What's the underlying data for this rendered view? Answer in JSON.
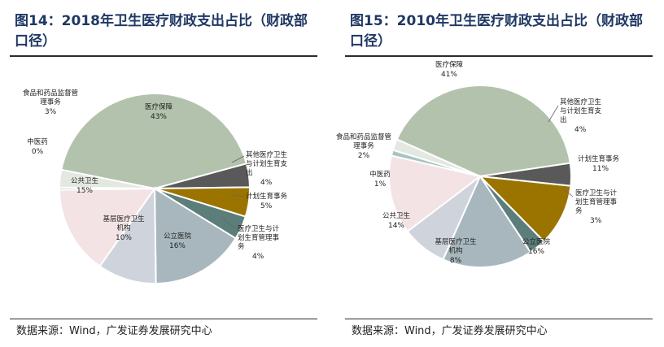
{
  "panels": [
    {
      "title": "图14：2018年卫生医疗财政支出占比（财政部口径）",
      "source": "数据来源：Wind，广发证券发展研究中心"
    },
    {
      "title": "图15：2010年卫生医疗财政支出占比（财政部口径）",
      "source": "数据来源：Wind，广发证券发展研究中心"
    }
  ],
  "chart_data": [
    {
      "type": "pie",
      "title": "图14：2018年卫生医疗财政支出占比（财政部口径）",
      "categories": [
        "医疗保障",
        "其他医疗卫生与计划生育支出",
        "计划生育事务",
        "医疗卫生与计划生育管理事务",
        "公立医院",
        "基层医疗卫生机构",
        "公共卫生",
        "中医药",
        "食品和药品监督管理事务"
      ],
      "values": [
        43,
        4,
        5,
        4,
        16,
        10,
        15,
        0,
        3
      ],
      "labels": [
        "43%",
        "4%",
        "5%",
        "4%",
        "16%",
        "10%",
        "15%",
        "0%",
        "3%"
      ],
      "colors": [
        "#b3c2ad",
        "#595959",
        "#9b7400",
        "#5c7e7a",
        "#a8b7bd",
        "#cfd4dc",
        "#f3e3e5",
        "#a9c4c0",
        "#e3e8e0"
      ]
    },
    {
      "type": "pie",
      "title": "图15：2010年卫生医疗财政支出占比（财政部口径）",
      "categories": [
        "医疗保障",
        "其他医疗卫生与计划生育支出",
        "计划生育事务",
        "医疗卫生与计划生育管理事务",
        "公立医院",
        "基层医疗卫生机构",
        "公共卫生",
        "中医药",
        "食品和药品监督管理事务"
      ],
      "values": [
        41,
        4,
        11,
        3,
        16,
        8,
        14,
        1,
        2
      ],
      "labels": [
        "41%",
        "4%",
        "11%",
        "3%",
        "16%",
        "8%",
        "14%",
        "1%",
        "2%"
      ],
      "colors": [
        "#b3c2ad",
        "#595959",
        "#9b7400",
        "#5c7e7a",
        "#a8b7bd",
        "#cfd4dc",
        "#f3e3e5",
        "#a9c4c0",
        "#e3e8e0"
      ]
    }
  ]
}
